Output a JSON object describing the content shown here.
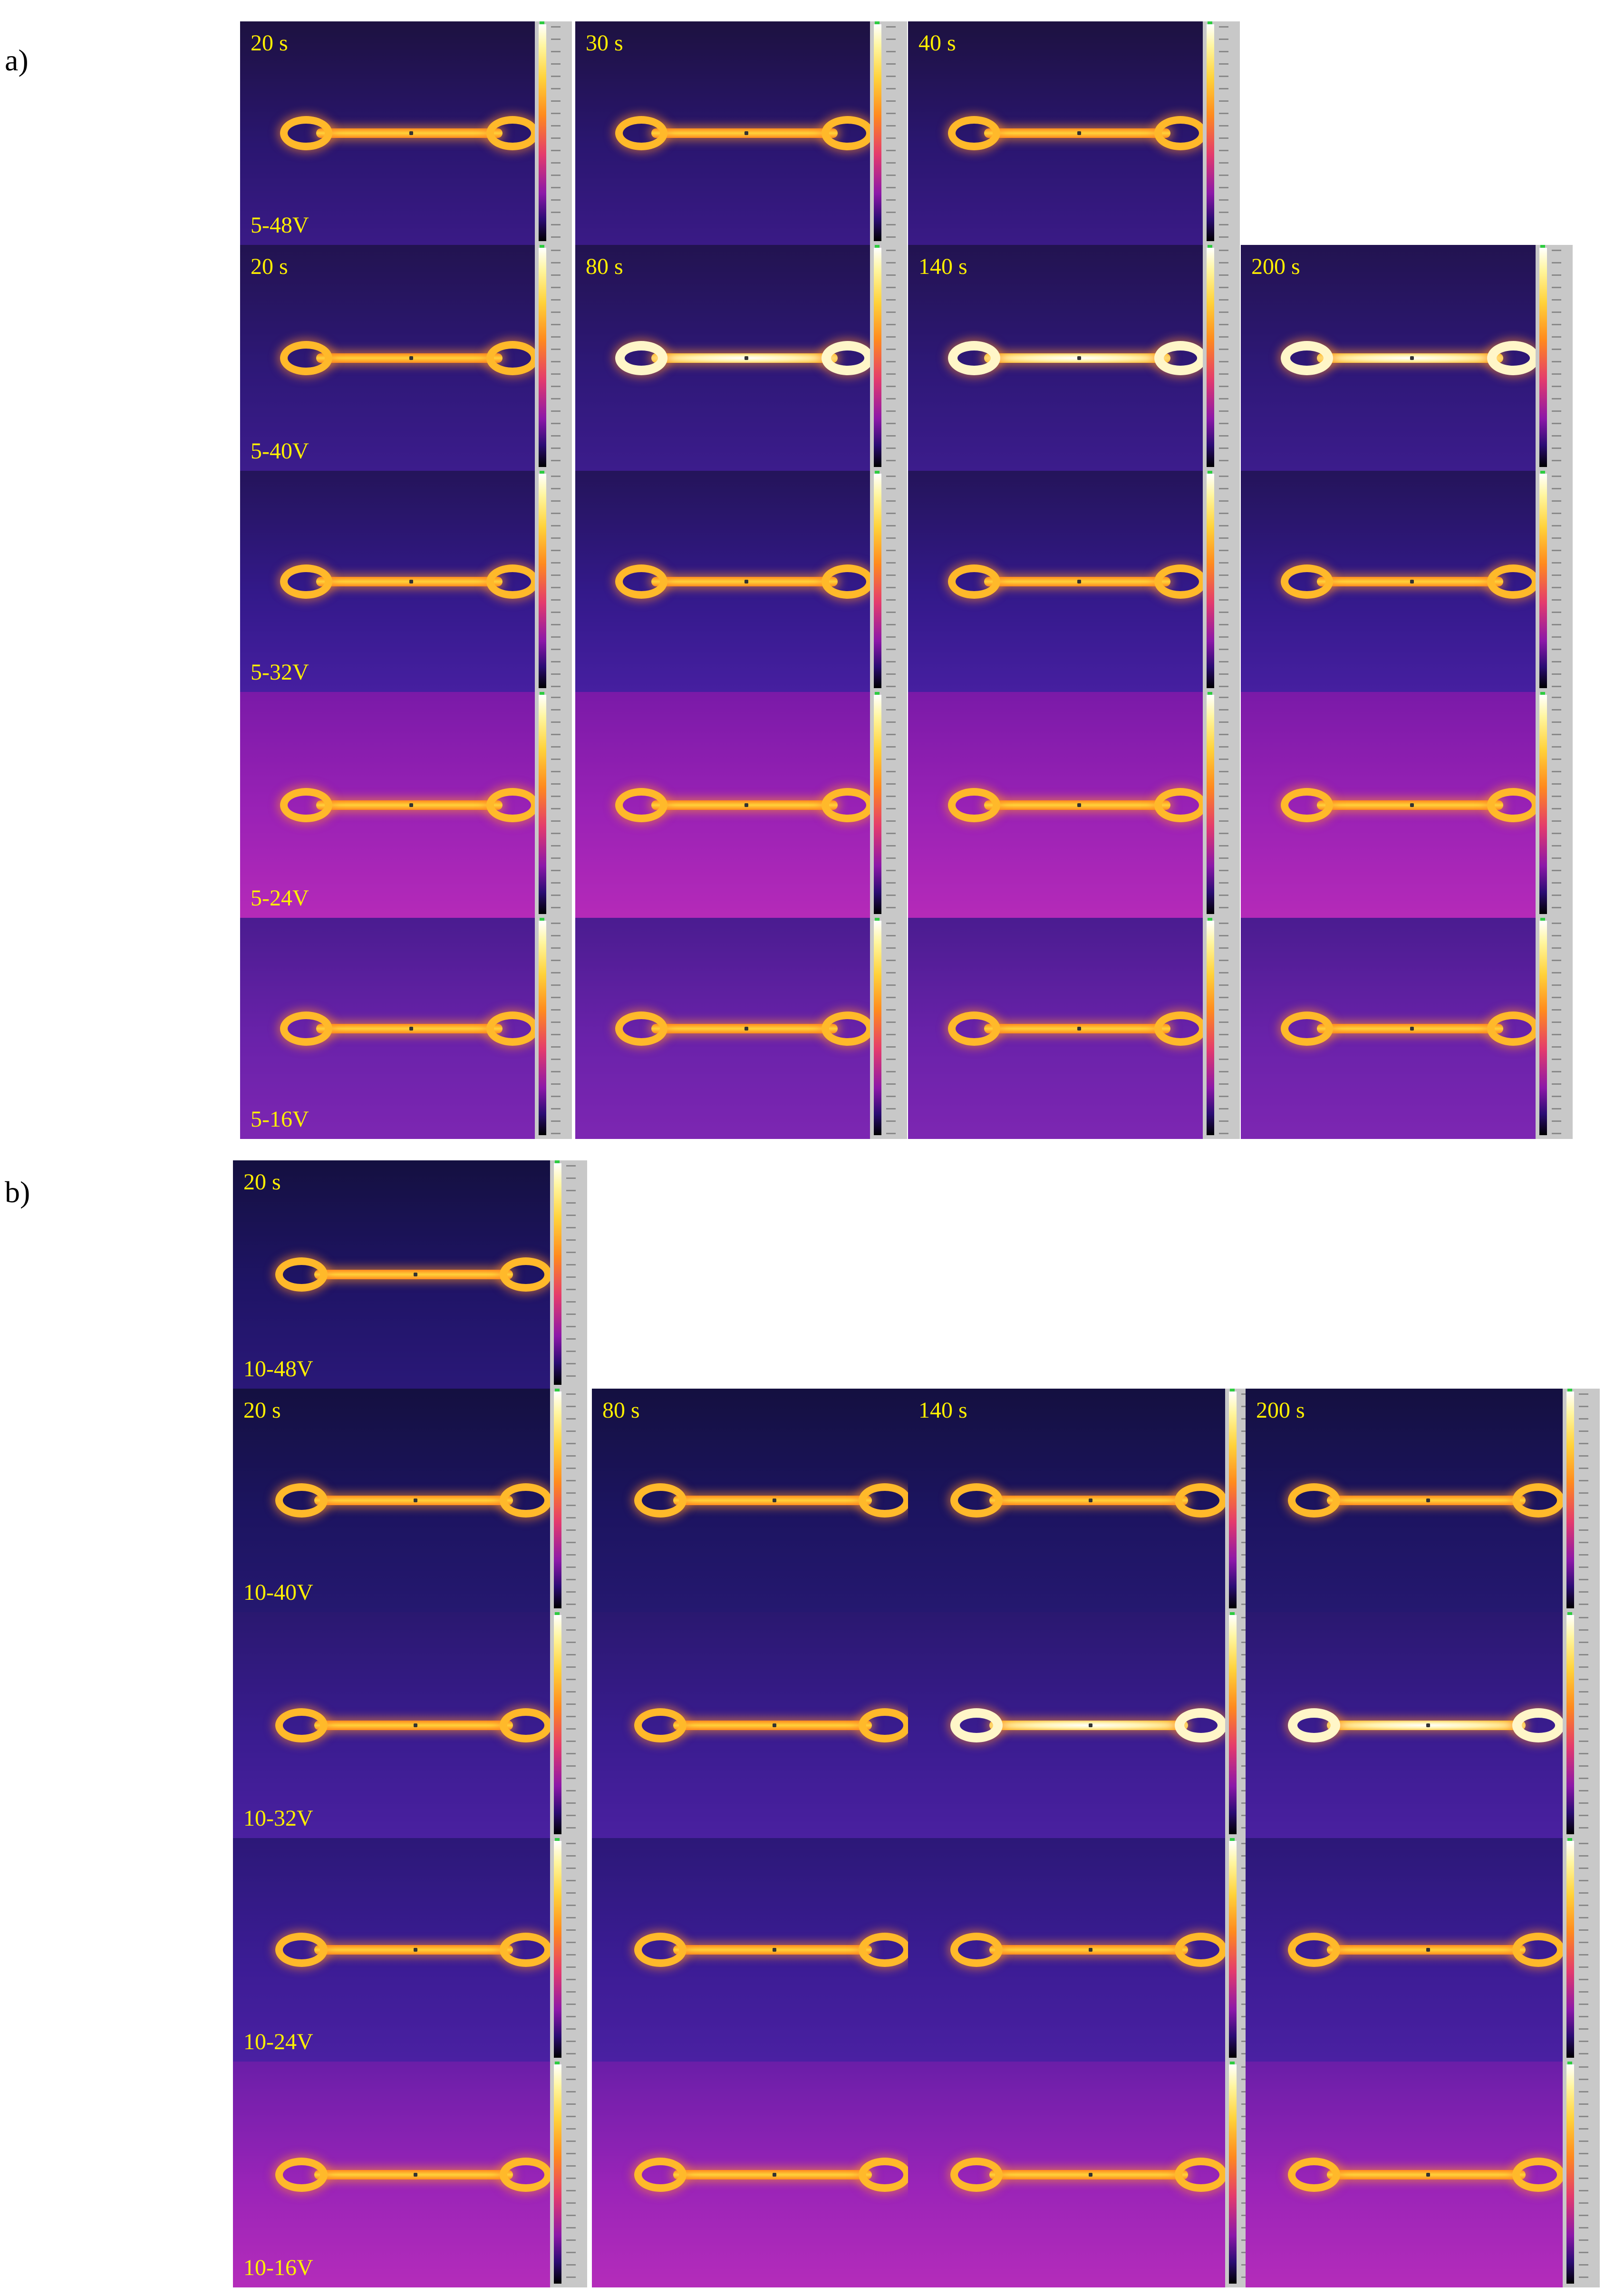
{
  "panel_a": {
    "label": "a)",
    "rows": [
      {
        "voltage": "5-48V",
        "times": [
          "20 s",
          "30 s",
          "40 s"
        ]
      },
      {
        "voltage": "5-40V",
        "times": [
          "20 s",
          "80 s",
          "140 s",
          "200 s"
        ]
      },
      {
        "voltage": "5-32V",
        "times": [
          "",
          "",
          "",
          ""
        ]
      },
      {
        "voltage": "5-24V",
        "times": [
          "",
          "",
          "",
          ""
        ]
      },
      {
        "voltage": "5-16V",
        "times": [
          "",
          "",
          "",
          ""
        ]
      }
    ]
  },
  "panel_b": {
    "label": "b)",
    "rows": [
      {
        "voltage": "10-48V",
        "times": [
          "20 s"
        ]
      },
      {
        "voltage": "10-40V",
        "times": [
          "20 s",
          "80 s",
          "140 s",
          "200 s"
        ]
      },
      {
        "voltage": "10-32V",
        "times": [
          "",
          "",
          "",
          ""
        ]
      },
      {
        "voltage": "10-24V",
        "times": [
          "",
          "",
          "",
          ""
        ]
      },
      {
        "voltage": "10-16V",
        "times": [
          "",
          "",
          "",
          ""
        ]
      }
    ]
  },
  "colors": {
    "label_text": "#ffef00",
    "background_cold": "#2a1670",
    "background_warm": "#a21fb8",
    "sample_hot": "#ffcc33"
  }
}
